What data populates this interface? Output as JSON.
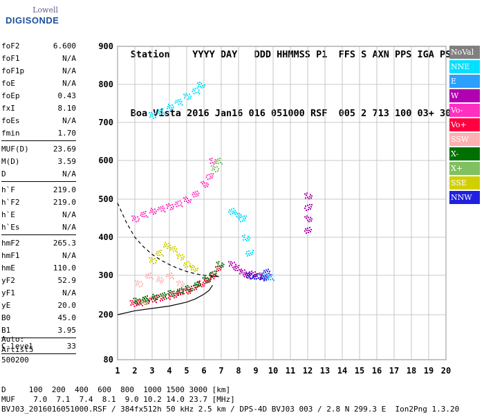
{
  "header": {
    "logo_line1": "Lowell",
    "logo_line2": "DIGISONDE",
    "labels": [
      "Station",
      "YYYY",
      "DAY",
      "DDD",
      "HHMMSS",
      "P1",
      "FFS",
      "S",
      "AXN",
      "PPS",
      "IGA",
      "PS"
    ],
    "values": [
      "Boa Vista",
      "2016",
      "Jan16",
      "016",
      "051000",
      "RSF",
      "005",
      "2",
      "713",
      "100",
      "03+",
      "30"
    ]
  },
  "params_group1": [
    {
      "key": "foF2",
      "value": "6.600"
    },
    {
      "key": "foF1",
      "value": "N/A"
    },
    {
      "key": "foF1p",
      "value": "N/A"
    },
    {
      "key": "foE",
      "value": "N/A"
    },
    {
      "key": "foEp",
      "value": "0.43"
    },
    {
      "key": "fxI",
      "value": "8.10"
    },
    {
      "key": "foEs",
      "value": "N/A"
    },
    {
      "key": "fmin",
      "value": "1.70"
    }
  ],
  "params_group2": [
    {
      "key": "MUF(D)",
      "value": "23.69"
    },
    {
      "key": "M(D)",
      "value": "3.59"
    },
    {
      "key": "D",
      "value": "N/A"
    }
  ],
  "params_group3": [
    {
      "key": "h`F",
      "value": "219.0"
    },
    {
      "key": "h`F2",
      "value": "219.0"
    },
    {
      "key": "h`E",
      "value": "N/A"
    },
    {
      "key": "h`Es",
      "value": "N/A"
    }
  ],
  "params_group4": [
    {
      "key": "hmF2",
      "value": "265.3"
    },
    {
      "key": "hmF1",
      "value": "N/A"
    },
    {
      "key": "hmE",
      "value": "110.0"
    },
    {
      "key": "yF2",
      "value": "52.9"
    },
    {
      "key": "yF1",
      "value": "N/A"
    },
    {
      "key": "yE",
      "value": "20.0"
    },
    {
      "key": "B0",
      "value": "45.0"
    },
    {
      "key": "B1",
      "value": "3.95"
    }
  ],
  "params_group5": [
    {
      "key": "C-level",
      "value": "33"
    }
  ],
  "auto": {
    "line1": "Auto:",
    "line2": "Artist5",
    "line3": "500200"
  },
  "footer": {
    "line1": "D     100  200  400  600  800  1000 1500 3000 [km]",
    "line2": "MUF    7.0  7.1  7.4  8.1  9.0 10.2 14.0 23.7 [MHz]",
    "line3": "BVJ03_2016016051000.RSF / 384fx512h 50 kHz 2.5 km / DPS-4D BVJ03 003 / 2.8 N 299.3 E  Ion2Png 1.3.20"
  },
  "legend": [
    {
      "label": "NoVal",
      "color": "#808080"
    },
    {
      "label": "NNE",
      "color": "#00e0ff"
    },
    {
      "label": "E",
      "color": "#2aa0ff"
    },
    {
      "label": "W",
      "color": "#b000b0"
    },
    {
      "label": "Vo-",
      "color": "#ff30c0"
    },
    {
      "label": "Vo+",
      "color": "#ff0040"
    },
    {
      "label": "SSW",
      "color": "#ffb0b0"
    },
    {
      "label": "X-",
      "color": "#007000"
    },
    {
      "label": "X+",
      "color": "#80c060"
    },
    {
      "label": "SSE",
      "color": "#d0d000"
    },
    {
      "label": "NNW",
      "color": "#2020e0"
    }
  ],
  "chart_data": {
    "type": "scatter",
    "title": "",
    "xlabel": "",
    "ylabel": "",
    "xlim": [
      1,
      20
    ],
    "ylim": [
      80,
      900
    ],
    "x_ticks": [
      1,
      2,
      3,
      4,
      5,
      6,
      7,
      8,
      9,
      10,
      11,
      12,
      13,
      14,
      15,
      16,
      17,
      18,
      19,
      20
    ],
    "y_ticks": [
      80,
      200,
      300,
      400,
      500,
      600,
      700,
      800,
      900
    ],
    "grid": true,
    "series": [
      {
        "name": "Vo+",
        "color": "#ff0040",
        "points": [
          [
            1.9,
            230
          ],
          [
            2.2,
            232
          ],
          [
            2.6,
            236
          ],
          [
            3.0,
            240
          ],
          [
            3.4,
            244
          ],
          [
            3.8,
            248
          ],
          [
            4.2,
            252
          ],
          [
            4.6,
            258
          ],
          [
            5.0,
            262
          ],
          [
            5.4,
            270
          ],
          [
            5.8,
            280
          ],
          [
            6.2,
            290
          ],
          [
            6.5,
            300
          ],
          [
            6.8,
            320
          ]
        ]
      },
      {
        "name": "X-",
        "color": "#007000",
        "points": [
          [
            2.1,
            236
          ],
          [
            2.6,
            242
          ],
          [
            3.1,
            246
          ],
          [
            3.6,
            250
          ],
          [
            4.1,
            256
          ],
          [
            4.6,
            262
          ],
          [
            5.1,
            268
          ],
          [
            5.6,
            278
          ],
          [
            6.1,
            290
          ],
          [
            6.5,
            305
          ],
          [
            6.9,
            330
          ]
        ]
      },
      {
        "name": "Vo-",
        "color": "#ff30c0",
        "points": [
          [
            2.0,
            450
          ],
          [
            2.5,
            462
          ],
          [
            3.0,
            470
          ],
          [
            3.5,
            476
          ],
          [
            4.0,
            482
          ],
          [
            4.5,
            490
          ],
          [
            5.0,
            500
          ],
          [
            5.5,
            515
          ],
          [
            6.0,
            540
          ],
          [
            6.3,
            560
          ],
          [
            6.5,
            600
          ]
        ]
      },
      {
        "name": "NNE",
        "color": "#00e0ff",
        "points": [
          [
            3.0,
            720
          ],
          [
            3.5,
            730
          ],
          [
            4.0,
            742
          ],
          [
            4.5,
            755
          ],
          [
            5.0,
            770
          ],
          [
            5.5,
            785
          ],
          [
            5.8,
            800
          ],
          [
            7.6,
            470
          ],
          [
            7.9,
            460
          ],
          [
            8.2,
            450
          ],
          [
            8.4,
            400
          ],
          [
            8.6,
            360
          ]
        ]
      },
      {
        "name": "W",
        "color": "#b000b0",
        "points": [
          [
            7.6,
            330
          ],
          [
            7.9,
            320
          ],
          [
            8.2,
            310
          ],
          [
            8.5,
            300
          ],
          [
            8.8,
            305
          ],
          [
            9.1,
            300
          ],
          [
            9.4,
            298
          ],
          [
            12.0,
            420
          ],
          [
            12.0,
            450
          ],
          [
            12.0,
            480
          ],
          [
            12.0,
            510
          ]
        ]
      },
      {
        "name": "SSE",
        "color": "#d0d000",
        "points": [
          [
            3.0,
            340
          ],
          [
            3.4,
            360
          ],
          [
            3.8,
            380
          ],
          [
            4.2,
            370
          ],
          [
            4.6,
            350
          ],
          [
            5.0,
            330
          ],
          [
            5.4,
            320
          ]
        ]
      },
      {
        "name": "SSW",
        "color": "#ffb0b0",
        "points": [
          [
            2.2,
            280
          ],
          [
            2.8,
            300
          ],
          [
            3.4,
            290
          ],
          [
            4.0,
            300
          ],
          [
            4.6,
            280
          ]
        ]
      },
      {
        "name": "NNW",
        "color": "#2020e0",
        "points": [
          [
            8.6,
            300
          ],
          [
            9.0,
            298
          ],
          [
            9.4,
            295
          ],
          [
            9.6,
            310
          ]
        ]
      },
      {
        "name": "X+",
        "color": "#80c060",
        "points": [
          [
            6.6,
            580
          ],
          [
            6.8,
            600
          ],
          [
            2.5,
            235
          ]
        ]
      },
      {
        "name": "E",
        "color": "#2aa0ff",
        "points": [
          [
            9.5,
            300
          ],
          [
            9.8,
            296
          ]
        ]
      }
    ],
    "profile_curve": [
      [
        1.0,
        200
      ],
      [
        2.0,
        210
      ],
      [
        3.0,
        216
      ],
      [
        4.0,
        222
      ],
      [
        5.0,
        232
      ],
      [
        5.5,
        240
      ],
      [
        6.0,
        252
      ],
      [
        6.3,
        262
      ],
      [
        6.5,
        275
      ]
    ],
    "dashed_curve": [
      [
        1.0,
        490
      ],
      [
        1.5,
        440
      ],
      [
        2.0,
        400
      ],
      [
        2.5,
        375
      ],
      [
        3.0,
        355
      ],
      [
        3.5,
        340
      ],
      [
        4.0,
        328
      ],
      [
        4.5,
        318
      ],
      [
        5.0,
        310
      ],
      [
        5.5,
        304
      ],
      [
        6.0,
        300
      ],
      [
        6.5,
        298
      ],
      [
        7.0,
        296
      ]
    ]
  }
}
